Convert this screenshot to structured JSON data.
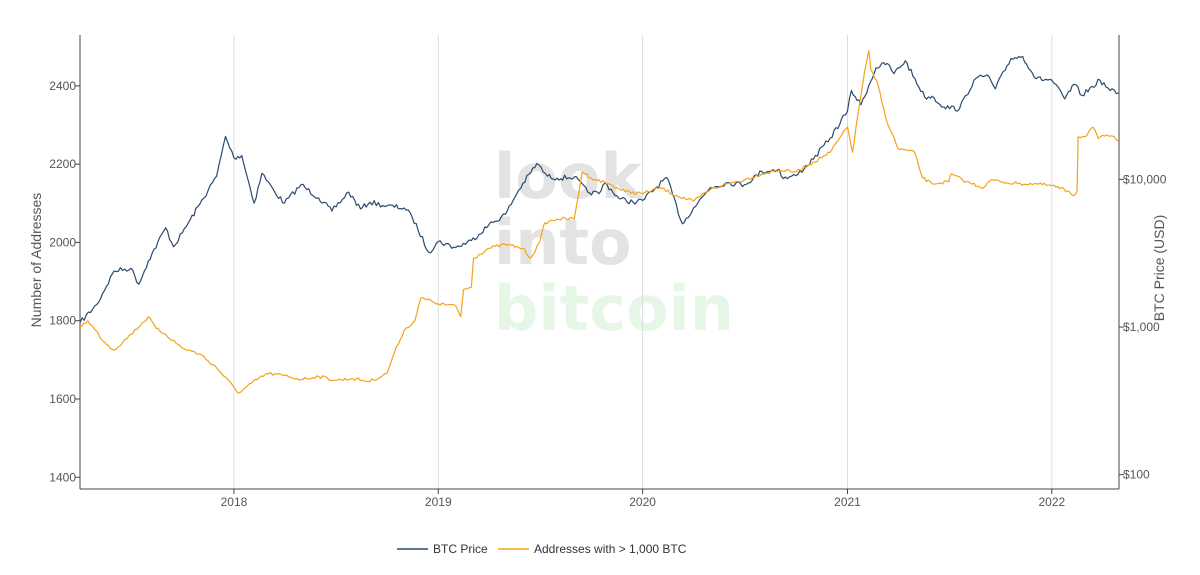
{
  "watermark": {
    "line1": "look",
    "line2": "into",
    "line3": "bitcoin",
    "color_main": "#e3e3e3",
    "color_accent": "#e7f7e7"
  },
  "chart_data": {
    "type": "line",
    "title": "",
    "xlabel": "",
    "ylabel": "Number of Addresses",
    "y2label": "BTC Price (USD)",
    "x_ticks": [
      "2018",
      "2019",
      "2020",
      "2021",
      "2022"
    ],
    "y_ticks": [
      1400,
      1600,
      1800,
      2000,
      2200,
      2400
    ],
    "y2_ticks": [
      "$100",
      "$1,000",
      "$10,000"
    ],
    "ylim": [
      1370,
      2530
    ],
    "y2_scale": "log",
    "y2lim": [
      80,
      95000
    ],
    "xlim": [
      "2017-04-01",
      "2022-05-01"
    ],
    "grid": {
      "vertical": true,
      "horizontal": false
    },
    "legend_position": "bottom-center",
    "series": [
      {
        "name": "BTC Price",
        "axis": "y2",
        "color": "#2b4a6e",
        "points": [
          [
            "2017-04-01",
            1070
          ],
          [
            "2017-05-01",
            1420
          ],
          [
            "2017-06-01",
            2400
          ],
          [
            "2017-07-01",
            2500
          ],
          [
            "2017-07-15",
            1950
          ],
          [
            "2017-08-01",
            2800
          ],
          [
            "2017-09-01",
            4700
          ],
          [
            "2017-09-15",
            3500
          ],
          [
            "2017-10-01",
            4350
          ],
          [
            "2017-11-01",
            6800
          ],
          [
            "2017-12-01",
            10500
          ],
          [
            "2017-12-17",
            19500
          ],
          [
            "2018-01-01",
            14000
          ],
          [
            "2018-01-15",
            14500
          ],
          [
            "2018-02-06",
            6900
          ],
          [
            "2018-02-20",
            11000
          ],
          [
            "2018-03-15",
            8200
          ],
          [
            "2018-04-01",
            6900
          ],
          [
            "2018-05-01",
            9200
          ],
          [
            "2018-06-01",
            7500
          ],
          [
            "2018-06-25",
            6100
          ],
          [
            "2018-07-25",
            8200
          ],
          [
            "2018-08-15",
            6300
          ],
          [
            "2018-09-01",
            7000
          ],
          [
            "2018-10-01",
            6600
          ],
          [
            "2018-11-01",
            6400
          ],
          [
            "2018-11-15",
            5600
          ],
          [
            "2018-12-15",
            3200
          ],
          [
            "2019-01-01",
            3800
          ],
          [
            "2019-02-01",
            3450
          ],
          [
            "2019-03-01",
            3850
          ],
          [
            "2019-04-01",
            4900
          ],
          [
            "2019-05-01",
            5800
          ],
          [
            "2019-05-25",
            8500
          ],
          [
            "2019-06-26",
            12800
          ],
          [
            "2019-07-15",
            10500
          ],
          [
            "2019-08-01",
            10200
          ],
          [
            "2019-09-01",
            10400
          ],
          [
            "2019-09-25",
            8200
          ],
          [
            "2019-10-15",
            8000
          ],
          [
            "2019-10-26",
            9500
          ],
          [
            "2019-11-20",
            7400
          ],
          [
            "2019-12-15",
            7000
          ],
          [
            "2020-01-01",
            7200
          ],
          [
            "2020-02-13",
            10300
          ],
          [
            "2020-03-12",
            5000
          ],
          [
            "2020-04-01",
            6400
          ],
          [
            "2020-05-01",
            8800
          ],
          [
            "2020-06-01",
            9500
          ],
          [
            "2020-07-01",
            9200
          ],
          [
            "2020-08-01",
            11300
          ],
          [
            "2020-09-01",
            11700
          ],
          [
            "2020-09-08",
            10100
          ],
          [
            "2020-10-01",
            10600
          ],
          [
            "2020-11-01",
            13700
          ],
          [
            "2020-12-01",
            19000
          ],
          [
            "2021-01-01",
            29000
          ],
          [
            "2021-01-08",
            40000
          ],
          [
            "2021-01-25",
            32000
          ],
          [
            "2021-02-21",
            57000
          ],
          [
            "2021-03-13",
            61000
          ],
          [
            "2021-03-25",
            52000
          ],
          [
            "2021-04-14",
            63500
          ],
          [
            "2021-05-19",
            36000
          ],
          [
            "2021-06-01",
            36500
          ],
          [
            "2021-06-22",
            31000
          ],
          [
            "2021-07-20",
            30000
          ],
          [
            "2021-08-15",
            47000
          ],
          [
            "2021-09-07",
            51000
          ],
          [
            "2021-09-22",
            41000
          ],
          [
            "2021-10-20",
            66000
          ],
          [
            "2021-11-10",
            68000
          ],
          [
            "2021-12-04",
            48000
          ],
          [
            "2022-01-01",
            47000
          ],
          [
            "2022-01-24",
            35000
          ],
          [
            "2022-02-10",
            44000
          ],
          [
            "2022-02-24",
            37000
          ],
          [
            "2022-03-28",
            47000
          ],
          [
            "2022-04-15",
            40000
          ],
          [
            "2022-04-30",
            38500
          ]
        ]
      },
      {
        "name": "Addresses with > 1,000 BTC",
        "axis": "y",
        "color": "#f5a319",
        "points": [
          [
            "2017-04-01",
            1785
          ],
          [
            "2017-04-15",
            1800
          ],
          [
            "2017-05-15",
            1745
          ],
          [
            "2017-06-01",
            1725
          ],
          [
            "2017-07-01",
            1765
          ],
          [
            "2017-08-01",
            1810
          ],
          [
            "2017-08-15",
            1780
          ],
          [
            "2017-09-01",
            1765
          ],
          [
            "2017-10-01",
            1730
          ],
          [
            "2017-11-01",
            1715
          ],
          [
            "2017-12-01",
            1680
          ],
          [
            "2018-01-01",
            1630
          ],
          [
            "2018-01-10",
            1615
          ],
          [
            "2018-02-01",
            1640
          ],
          [
            "2018-03-01",
            1665
          ],
          [
            "2018-04-01",
            1660
          ],
          [
            "2018-05-01",
            1650
          ],
          [
            "2018-06-01",
            1658
          ],
          [
            "2018-07-01",
            1648
          ],
          [
            "2018-08-01",
            1652
          ],
          [
            "2018-09-01",
            1645
          ],
          [
            "2018-10-01",
            1665
          ],
          [
            "2018-10-15",
            1720
          ],
          [
            "2018-11-01",
            1775
          ],
          [
            "2018-11-20",
            1800
          ],
          [
            "2018-12-01",
            1858
          ],
          [
            "2018-12-20",
            1850
          ],
          [
            "2019-01-01",
            1843
          ],
          [
            "2019-02-01",
            1838
          ],
          [
            "2019-02-10",
            1810
          ],
          [
            "2019-02-15",
            1880
          ],
          [
            "2019-03-01",
            1885
          ],
          [
            "2019-03-05",
            1960
          ],
          [
            "2019-04-01",
            1985
          ],
          [
            "2019-05-01",
            1995
          ],
          [
            "2019-06-01",
            1985
          ],
          [
            "2019-06-15",
            1960
          ],
          [
            "2019-07-01",
            2000
          ],
          [
            "2019-07-10",
            2050
          ],
          [
            "2019-08-01",
            2060
          ],
          [
            "2019-09-01",
            2060
          ],
          [
            "2019-09-15",
            2180
          ],
          [
            "2019-10-01",
            2165
          ],
          [
            "2019-11-01",
            2150
          ],
          [
            "2019-12-01",
            2130
          ],
          [
            "2020-01-01",
            2125
          ],
          [
            "2020-02-01",
            2140
          ],
          [
            "2020-03-01",
            2120
          ],
          [
            "2020-04-01",
            2105
          ],
          [
            "2020-05-01",
            2135
          ],
          [
            "2020-06-01",
            2150
          ],
          [
            "2020-07-01",
            2160
          ],
          [
            "2020-08-01",
            2175
          ],
          [
            "2020-09-01",
            2185
          ],
          [
            "2020-10-01",
            2180
          ],
          [
            "2020-11-01",
            2205
          ],
          [
            "2020-12-01",
            2230
          ],
          [
            "2021-01-01",
            2295
          ],
          [
            "2021-01-10",
            2230
          ],
          [
            "2021-01-20",
            2330
          ],
          [
            "2021-02-01",
            2440
          ],
          [
            "2021-02-08",
            2490
          ],
          [
            "2021-02-12",
            2440
          ],
          [
            "2021-02-25",
            2400
          ],
          [
            "2021-03-10",
            2320
          ],
          [
            "2021-04-01",
            2240
          ],
          [
            "2021-05-01",
            2230
          ],
          [
            "2021-05-15",
            2165
          ],
          [
            "2021-06-01",
            2150
          ],
          [
            "2021-07-01",
            2155
          ],
          [
            "2021-07-05",
            2175
          ],
          [
            "2021-08-01",
            2155
          ],
          [
            "2021-09-01",
            2140
          ],
          [
            "2021-09-15",
            2160
          ],
          [
            "2021-10-01",
            2155
          ],
          [
            "2021-11-01",
            2150
          ],
          [
            "2021-12-01",
            2150
          ],
          [
            "2022-01-01",
            2145
          ],
          [
            "2022-02-01",
            2130
          ],
          [
            "2022-02-10",
            2120
          ],
          [
            "2022-02-15",
            2130
          ],
          [
            "2022-02-17",
            2270
          ],
          [
            "2022-03-01",
            2270
          ],
          [
            "2022-03-15",
            2295
          ],
          [
            "2022-03-25",
            2265
          ],
          [
            "2022-04-10",
            2275
          ],
          [
            "2022-04-30",
            2260
          ]
        ]
      }
    ]
  }
}
